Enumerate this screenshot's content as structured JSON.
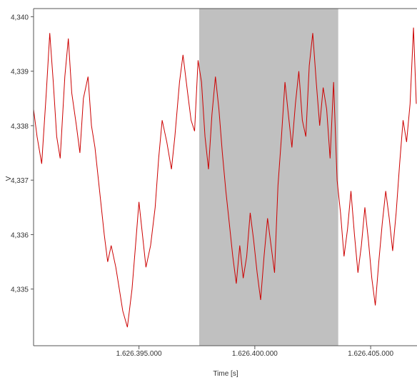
{
  "chart_data": {
    "type": "line",
    "title": "",
    "xlabel": "Time [s]",
    "ylabel": "V",
    "xlim": [
      1626390.45,
      1626407.0
    ],
    "ylim": [
      4.33396,
      4.34015
    ],
    "x_ticks": [
      1626395.0,
      1626400.0,
      1626405.0
    ],
    "x_tick_labels": [
      "1.626.395.000",
      "1.626.400.000",
      "1.626.405.000"
    ],
    "y_ticks": [
      4.335,
      4.336,
      4.337,
      4.338,
      4.339,
      4.34
    ],
    "y_tick_labels": [
      "4,335",
      "4,336",
      "4,337",
      "4,338",
      "4,339",
      "4,340"
    ],
    "highlight_region": {
      "x_start": 1626397.6,
      "x_end": 1626403.6,
      "color": "#c0c0c0"
    },
    "grid": false,
    "series": [
      {
        "color": "#cc0000",
        "x": [
          1626390.45,
          1626390.6,
          1626390.8,
          1626391.0,
          1626391.15,
          1626391.3,
          1626391.45,
          1626391.6,
          1626391.8,
          1626391.95,
          1626392.1,
          1626392.3,
          1626392.45,
          1626392.6,
          1626392.8,
          1626392.95,
          1626393.1,
          1626393.3,
          1626393.5,
          1626393.65,
          1626393.8,
          1626394.0,
          1626394.15,
          1626394.3,
          1626394.5,
          1626394.7,
          1626394.85,
          1626395.0,
          1626395.15,
          1626395.3,
          1626395.5,
          1626395.7,
          1626395.85,
          1626396.0,
          1626396.2,
          1626396.4,
          1626396.55,
          1626396.75,
          1626396.9,
          1626397.1,
          1626397.25,
          1626397.4,
          1626397.55,
          1626397.7,
          1626397.85,
          1626398.0,
          1626398.15,
          1626398.3,
          1626398.45,
          1626398.6,
          1626398.75,
          1626398.9,
          1626399.05,
          1626399.2,
          1626399.35,
          1626399.5,
          1626399.65,
          1626399.8,
          1626399.95,
          1626400.1,
          1626400.25,
          1626400.4,
          1626400.55,
          1626400.7,
          1626400.85,
          1626401.0,
          1626401.15,
          1626401.3,
          1626401.45,
          1626401.6,
          1626401.75,
          1626401.9,
          1626402.05,
          1626402.2,
          1626402.35,
          1626402.5,
          1626402.65,
          1626402.8,
          1626402.95,
          1626403.1,
          1626403.25,
          1626403.4,
          1626403.55,
          1626403.7,
          1626403.85,
          1626404.0,
          1626404.15,
          1626404.3,
          1626404.45,
          1626404.6,
          1626404.75,
          1626404.9,
          1626405.05,
          1626405.2,
          1626405.35,
          1626405.5,
          1626405.65,
          1626405.8,
          1626405.95,
          1626406.1,
          1626406.25,
          1626406.4,
          1626406.55,
          1626406.7,
          1626406.85,
          1626407.0
        ],
        "y": [
          4.3383,
          4.3378,
          4.3373,
          4.3386,
          4.3397,
          4.3388,
          4.3378,
          4.3374,
          4.3389,
          4.3396,
          4.3386,
          4.338,
          4.3375,
          4.3385,
          4.3389,
          4.338,
          4.3376,
          4.3368,
          4.336,
          4.3355,
          4.3358,
          4.3354,
          4.335,
          4.3346,
          4.3343,
          4.335,
          4.3358,
          4.3366,
          4.336,
          4.3354,
          4.3358,
          4.3365,
          4.3374,
          4.3381,
          4.3377,
          4.3372,
          4.3378,
          4.3388,
          4.3393,
          4.3386,
          4.3381,
          4.3379,
          4.3392,
          4.3388,
          4.3378,
          4.3372,
          4.3382,
          4.3389,
          4.3383,
          4.3375,
          4.3368,
          4.3362,
          4.3356,
          4.3351,
          4.3358,
          4.3352,
          4.3356,
          4.3364,
          4.3359,
          4.3353,
          4.3348,
          4.3356,
          4.3363,
          4.3358,
          4.3353,
          4.3369,
          4.3378,
          4.3388,
          4.3382,
          4.3376,
          4.3384,
          4.339,
          4.3381,
          4.3378,
          4.3391,
          4.3397,
          4.3388,
          4.338,
          4.3387,
          4.3383,
          4.3374,
          4.3388,
          4.337,
          4.3364,
          4.3356,
          4.3361,
          4.3368,
          4.336,
          4.3353,
          4.3358,
          4.3365,
          4.3359,
          4.3352,
          4.3347,
          4.3355,
          4.3362,
          4.3368,
          4.3363,
          4.3357,
          4.3364,
          4.3373,
          4.3381,
          4.3377,
          4.3384,
          4.3398,
          4.3384
        ]
      }
    ]
  }
}
